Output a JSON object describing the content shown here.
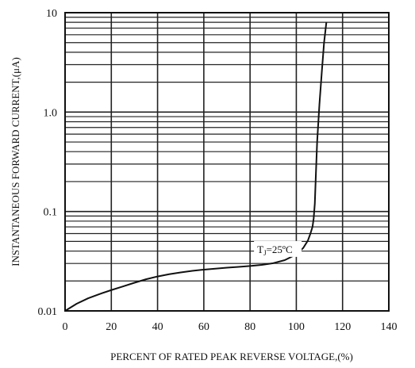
{
  "chart_data": {
    "type": "line",
    "title": "",
    "xlabel": "PERCENT OF RATED PEAK REVERSE VOLTAGE,(%)",
    "ylabel": "INSTANTANEOUS FORWARD CURRENT,(μA)",
    "xlim": [
      0,
      140
    ],
    "ylim": [
      0.01,
      10
    ],
    "yscale": "log",
    "grid": true,
    "legend": "none",
    "x_ticks": [
      0,
      20,
      40,
      60,
      80,
      100,
      120,
      140
    ],
    "x_tick_labels": [
      "0",
      "20",
      "40",
      "60",
      "80",
      "100",
      "120",
      "140"
    ],
    "y_ticks": [
      0.01,
      0.1,
      1.0,
      10
    ],
    "y_tick_labels": [
      "0.01",
      "0.1",
      "1.0",
      "10"
    ],
    "series": [
      {
        "x": [
          0,
          5,
          10,
          15,
          20,
          25,
          30,
          35,
          40,
          45,
          50,
          55,
          60,
          65,
          70,
          75,
          80,
          85,
          90,
          95,
          100,
          103,
          105,
          106,
          107,
          107.5,
          108,
          108.5,
          109,
          110,
          111,
          112,
          113
        ],
        "values": [
          0.01,
          0.0118,
          0.0134,
          0.0148,
          0.0162,
          0.0176,
          0.0192,
          0.0208,
          0.0222,
          0.0234,
          0.0244,
          0.0253,
          0.026,
          0.0266,
          0.0272,
          0.0277,
          0.0283,
          0.029,
          0.0302,
          0.0324,
          0.037,
          0.043,
          0.051,
          0.059,
          0.07,
          0.085,
          0.12,
          0.25,
          0.5,
          1.2,
          2.5,
          5.0,
          8.0
        ]
      }
    ],
    "annotations": [
      {
        "text_main": "T",
        "text_sub": "J",
        "text_rest": "=25ºC",
        "x": 92,
        "y": 0.042
      }
    ],
    "colors": {
      "line": "#111111",
      "grid": "#222222",
      "background": "#ffffff"
    }
  }
}
